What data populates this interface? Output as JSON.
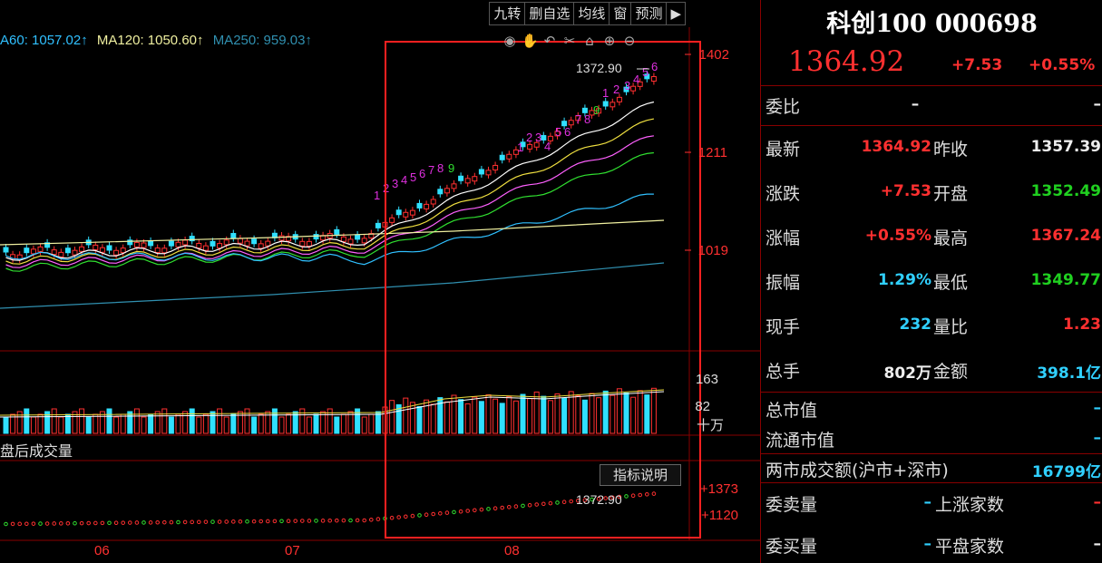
{
  "toolbar": {
    "items": [
      "九转",
      "删自选",
      "均线",
      "窗",
      "预测",
      "▶"
    ]
  },
  "ma_legend": [
    {
      "text": "A60: 1057.02↑",
      "color": "#30c0ff"
    },
    {
      "text": "MA120: 1050.60↑",
      "color": "#f0f0a0"
    },
    {
      "text": "MA250: 959.03↑",
      "color": "#3090b0"
    }
  ],
  "chart_icons": [
    "eye-icon",
    "hand-icon",
    "undo-icon",
    "scissors-icon",
    "lock-icon",
    "plus-icon",
    "minus-icon"
  ],
  "price_axis": [
    "1402",
    "1211",
    "1019"
  ],
  "vol_axis": [
    "163",
    "82",
    "十万"
  ],
  "sub_axis": [
    "+1373",
    "+1120"
  ],
  "annotations": {
    "high_price": "1372.90",
    "sub_high": "1372.90"
  },
  "volume_label": "盘后成交量",
  "indicator_button": "指标说明",
  "dates": [
    "06",
    "07",
    "08"
  ],
  "quote": {
    "title": "科创100 000698",
    "price": "1364.92",
    "change": "+7.53",
    "change_pct": "+0.55%",
    "weibi_label": "委比",
    "weibi_value": "–",
    "weibi_value2": "–",
    "rows": [
      {
        "l1": "最新",
        "v1": "1364.92",
        "c1": "red",
        "l2": "昨收",
        "v2": "1357.39",
        "c2": "white"
      },
      {
        "l1": "涨跌",
        "v1": "+7.53",
        "c1": "red",
        "l2": "开盘",
        "v2": "1352.49",
        "c2": "green"
      },
      {
        "l1": "涨幅",
        "v1": "+0.55%",
        "c1": "red",
        "l2": "最高",
        "v2": "1367.24",
        "c2": "red"
      },
      {
        "l1": "振幅",
        "v1": "1.29%",
        "c1": "cyan",
        "l2": "最低",
        "v2": "1349.77",
        "c2": "green"
      },
      {
        "l1": "现手",
        "v1": "232",
        "c1": "cyan",
        "l2": "量比",
        "v2": "1.23",
        "c2": "red"
      },
      {
        "l1": "总手",
        "v1": "802万",
        "c1": "white",
        "l2": "金额",
        "v2": "398.1亿",
        "c2": "cyan"
      }
    ],
    "market_cap_label": "总市值",
    "market_cap_value": "–",
    "float_cap_label": "流通市值",
    "float_cap_value": "–",
    "turnover_label": "两市成交额(沪市+深市)",
    "turnover_value": "16799亿",
    "bottom_rows": [
      {
        "l1": "委卖量",
        "v1": "–",
        "l2": "上涨家数",
        "v2": "–"
      },
      {
        "l1": "委买量",
        "v1": "–",
        "l2": "平盘家数",
        "v2": "–"
      }
    ]
  },
  "colors": {
    "up": "#ff3030",
    "down": "#30e0ff",
    "highlight_box": "#ff2020",
    "td_count": "#e030e0"
  }
}
